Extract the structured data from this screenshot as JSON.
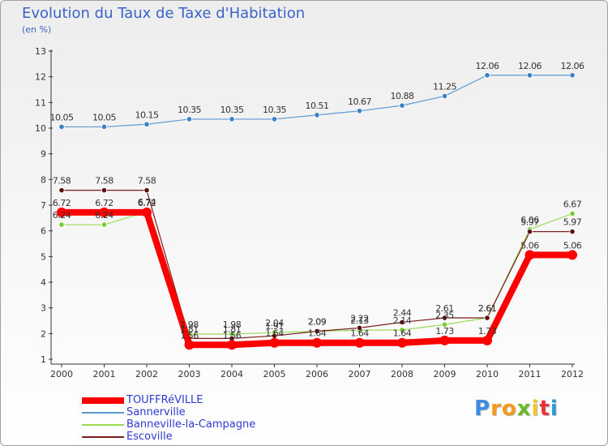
{
  "chart_data": {
    "type": "line",
    "title": "Evolution du Taux de Taxe d'Habitation",
    "unit_label": "(en %)",
    "x": [
      "2000",
      "2001",
      "2002",
      "2003",
      "2004",
      "2005",
      "2006",
      "2007",
      "2008",
      "2009",
      "2010",
      "2011",
      "2012"
    ],
    "ylim": [
      1,
      13
    ],
    "yticks": [
      1,
      2,
      3,
      4,
      5,
      6,
      7,
      8,
      9,
      10,
      11,
      12,
      13
    ],
    "grid": false,
    "legend_position": "bottom-left",
    "series": [
      {
        "name": "TOUFFRéVILLE",
        "color": "#ff0000",
        "labels": [
          "6.72",
          "6.72",
          "6.72",
          "1.56",
          "1.56",
          "1.64",
          "1.64",
          "1.64",
          "1.64",
          "1.73",
          "1.73",
          "5.06",
          "5.06"
        ],
        "values": [
          6.72,
          6.72,
          6.72,
          1.56,
          1.56,
          1.64,
          1.64,
          1.64,
          1.64,
          1.73,
          1.73,
          5.06,
          5.06
        ]
      },
      {
        "name": "Sannerville",
        "color": "#5b9bd5",
        "labels": [
          "10.05",
          "10.05",
          "10.15",
          "10.35",
          "10.35",
          "10.35",
          "10.51",
          "10.67",
          "10.88",
          "11.25",
          "12.06",
          "12.06",
          "12.06"
        ],
        "values": [
          10.05,
          10.05,
          10.15,
          10.35,
          10.35,
          10.35,
          10.51,
          10.67,
          10.88,
          11.25,
          12.06,
          12.06,
          12.06
        ]
      },
      {
        "name": "Banneville-la-Campagne",
        "color": "#99dd55",
        "labels": [
          "6.24",
          "6.24",
          "6.74",
          "1.98",
          "1.98",
          "2.04",
          "2.09",
          "2.13",
          "2.14",
          "2.35",
          "2.61",
          "6.06",
          "6.67"
        ],
        "values": [
          6.24,
          6.24,
          6.74,
          1.98,
          1.98,
          2.04,
          2.09,
          2.13,
          2.14,
          2.35,
          2.61,
          6.06,
          6.67
        ]
      },
      {
        "name": "Escoville",
        "color": "#7a1f1f",
        "labels": [
          "7.58",
          "7.58",
          "7.58",
          "1.81",
          "1.81",
          "1.91",
          "2.09",
          "2.22",
          "2.44",
          "2.61",
          "2.61",
          "5.97",
          "5.97"
        ],
        "values": [
          7.58,
          7.58,
          7.58,
          1.81,
          1.81,
          1.91,
          2.09,
          2.22,
          2.44,
          2.61,
          2.61,
          5.97,
          5.97
        ]
      }
    ]
  },
  "logo": {
    "letters": [
      "P",
      "r",
      "o",
      "x",
      "i",
      "t",
      "i"
    ],
    "colors": [
      "#3c8de0",
      "#f39a1f",
      "#f39a1f",
      "#6ab92a",
      "#f3c81f",
      "#e8333a",
      "#2a9bd8"
    ]
  }
}
